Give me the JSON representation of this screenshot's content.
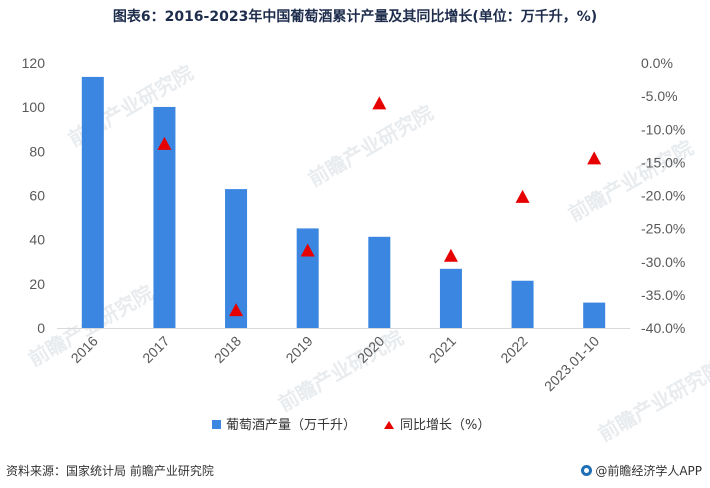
{
  "title": "图表6：2016-2023年中国葡萄酒累计产量及其同比增长(单位：万千升，%)",
  "source": "资料来源：国家统计局 前瞻产业研究院",
  "brand": "@前瞻经济学人APP",
  "watermark": "前瞻产业研究院",
  "colors": {
    "bar": "#3a86e0",
    "marker": "#e60000",
    "axis": "#d9d9d9",
    "text": "#595959"
  },
  "chart_data": {
    "type": "bar",
    "categories": [
      "2016",
      "2017",
      "2018",
      "2019",
      "2020",
      "2021",
      "2022",
      "2023.01-10"
    ],
    "series": [
      {
        "name": "葡萄酒产量（万千升）",
        "type": "bar",
        "axis": "left",
        "values": [
          113.7,
          100.1,
          62.9,
          45.1,
          41.3,
          26.8,
          21.4,
          11.5
        ]
      },
      {
        "name": "同比增长（%）",
        "type": "scatter",
        "marker": "triangle",
        "axis": "right",
        "values": [
          null,
          -12.2,
          -37.3,
          -28.3,
          -6.1,
          -29.1,
          -20.2,
          -14.4
        ]
      }
    ],
    "y_left": {
      "min": 0,
      "max": 120,
      "step": 20,
      "ticks": [
        "0",
        "20",
        "40",
        "60",
        "80",
        "100",
        "120"
      ]
    },
    "y_right": {
      "min": -40,
      "max": 0,
      "step": 5,
      "ticks": [
        "-40.0%",
        "-35.0%",
        "-30.0%",
        "-25.0%",
        "-20.0%",
        "-15.0%",
        "-10.0%",
        "-5.0%",
        "0.0%"
      ]
    },
    "legend_position": "bottom",
    "grid": false
  }
}
